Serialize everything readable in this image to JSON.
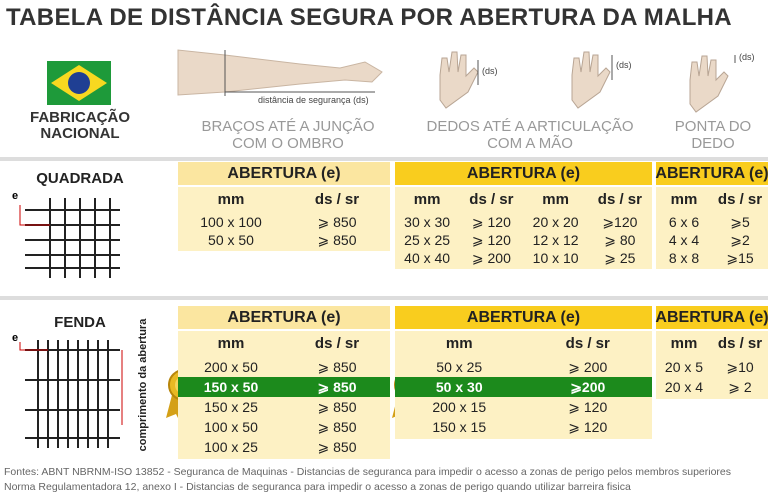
{
  "header": {
    "title": "TABELA DE DISTÂNCIA SEGURA POR ABERTURA DA MALHA",
    "badge": "FABRICAÇÃO NACIONAL",
    "arm_caption": "distância de segurança (ds)",
    "hand_label": "(ds)"
  },
  "columns": [
    "BRAÇOS ATÉ A JUNÇÃO COM O OMBRO",
    "DEDOS ATÉ A ARTICULAÇÃO COM A MÃO",
    "PONTA DO DEDO"
  ],
  "sections": [
    {
      "name": "QUADRADA",
      "mesh_label": "e",
      "groups": [
        {
          "header": "ABERTURA (e)",
          "columns": [
            "mm",
            "ds / sr"
          ],
          "rows": [
            [
              "100 x 100",
              "⩾ 850"
            ],
            [
              "50 x 50",
              "⩾ 850"
            ]
          ]
        },
        {
          "header": "ABERTURA (e)",
          "columns": [
            "mm",
            "ds / sr",
            "mm",
            "ds / sr"
          ],
          "rows": [
            [
              "30 x 30",
              "⩾ 120",
              "20 x 20",
              "⩾120"
            ],
            [
              "25 x 25",
              "⩾ 120",
              "12 x 12",
              "⩾ 80"
            ],
            [
              "40 x 40",
              "⩾ 200",
              "10 x 10",
              "⩾ 25"
            ]
          ]
        },
        {
          "header": "ABERTURA (e)",
          "columns": [
            "mm",
            "ds / sr"
          ],
          "rows": [
            [
              "6 x 6",
              "⩾5"
            ],
            [
              "4 x 4",
              "⩾2"
            ],
            [
              "8 x 8",
              "⩾15"
            ]
          ]
        }
      ]
    },
    {
      "name": "FENDA",
      "mesh_label": "e",
      "side_label": "comprimento da abertura",
      "groups": [
        {
          "header": "ABERTURA (e)",
          "columns": [
            "mm",
            "ds / sr"
          ],
          "rows": [
            [
              "200 x 50",
              "⩾ 850"
            ],
            [
              "150 x 50",
              "⩾ 850"
            ],
            [
              "150 x 25",
              "⩾ 850"
            ],
            [
              "100 x 50",
              "⩾ 850"
            ],
            [
              "100 x 25",
              "⩾ 850"
            ]
          ],
          "highlight_row": 1
        },
        {
          "header": "ABERTURA (e)",
          "columns": [
            "mm",
            "ds / sr"
          ],
          "rows": [
            [
              "50 x 25",
              "⩾ 200"
            ],
            [
              "50 x 30",
              "⩾200"
            ],
            [
              "200 x 15",
              "⩾ 120"
            ],
            [
              "150 x 15",
              "⩾ 120"
            ]
          ],
          "highlight_row": 1
        },
        {
          "header": "ABERTURA (e)",
          "columns": [
            "mm",
            "ds / sr"
          ],
          "rows": [
            [
              "20 x 5",
              "⩾10"
            ],
            [
              "20 x 4",
              "⩾ 2"
            ]
          ]
        }
      ]
    }
  ],
  "footer": [
    "Fontes: ABNT NBRNM-ISO 13852 - Seguranca de Maquinas - Distancias de seguranca para impedir o acesso a zonas de perigo pelos membros superiores",
    "Norma Regulamentadora 12, anexo I - Distancias de seguranca para impedir o acesso a zonas de perigo quando utilizar barreira fisica"
  ]
}
